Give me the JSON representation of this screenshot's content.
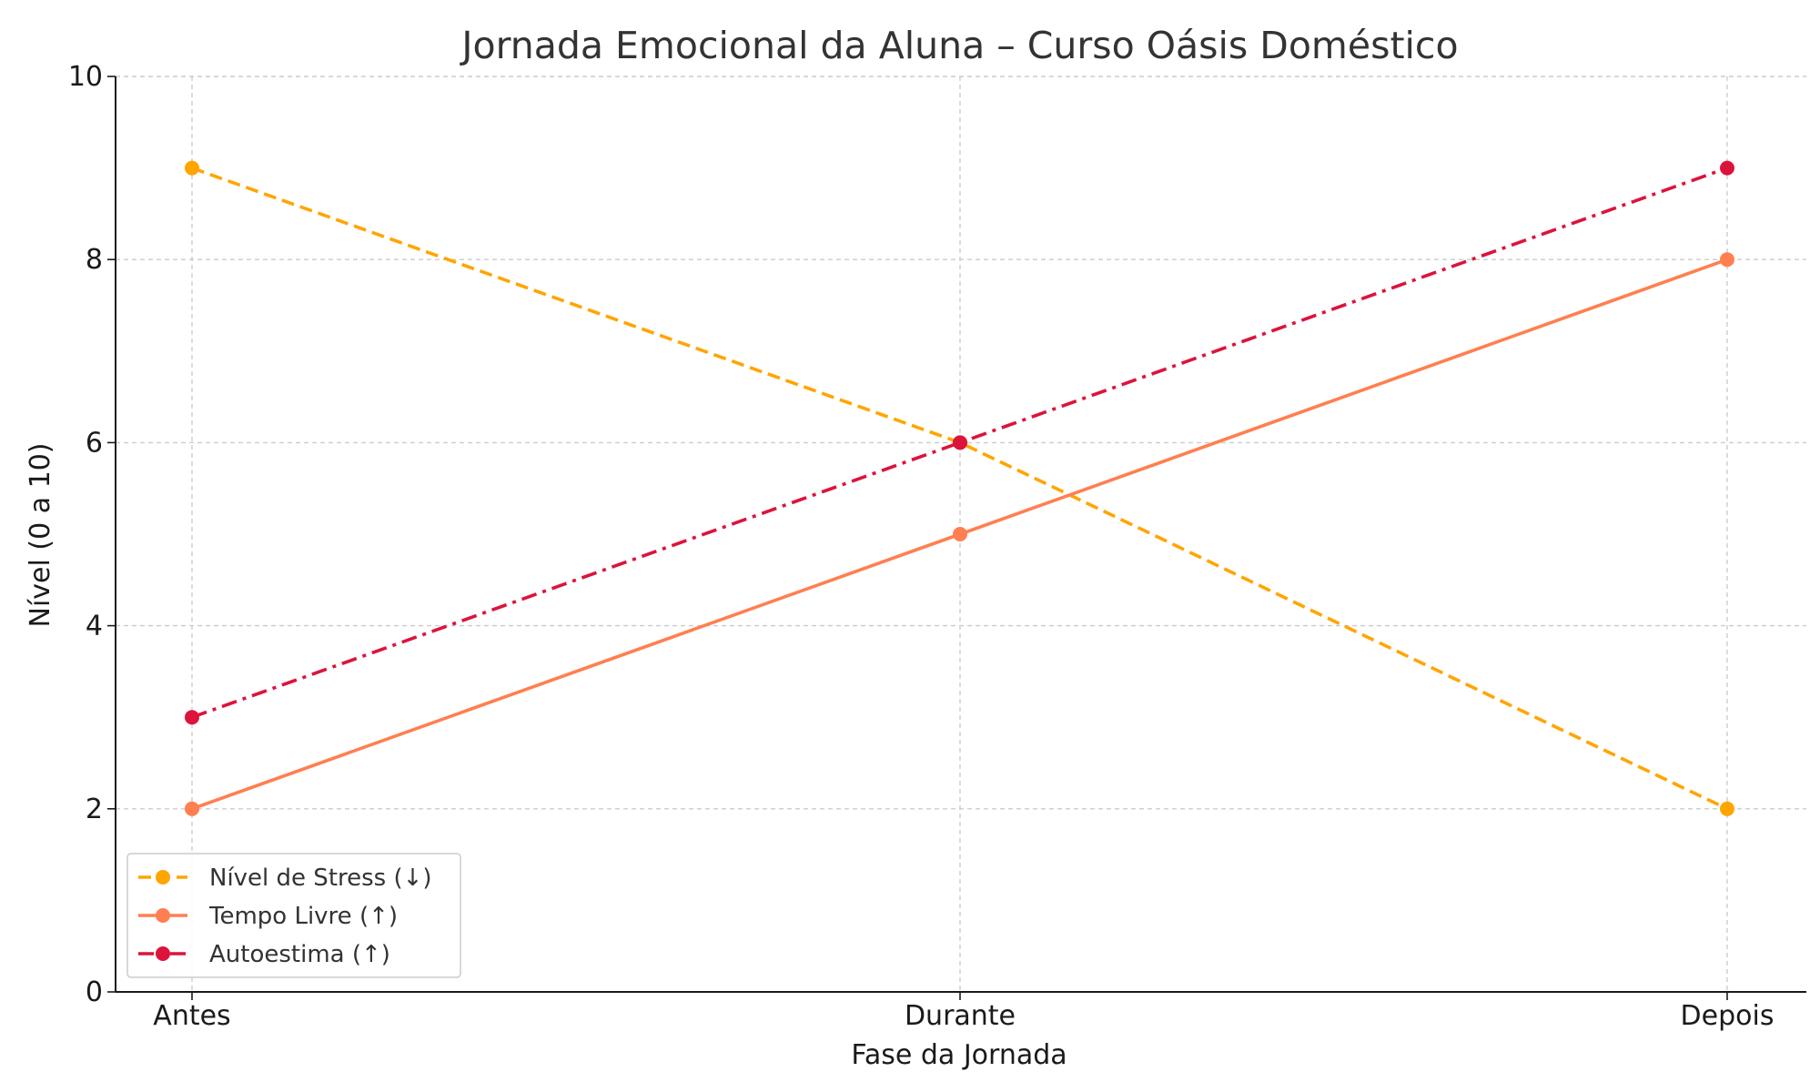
{
  "chart_data": {
    "type": "line",
    "title": "Jornada Emocional da Aluna – Curso Oásis Doméstico",
    "xlabel": "Fase da Jornada",
    "ylabel": "Nível (0 a 10)",
    "categories": [
      "Antes",
      "Durante",
      "Depois"
    ],
    "ylim": [
      0,
      10
    ],
    "yticks": [
      0,
      2,
      4,
      6,
      8,
      10
    ],
    "grid": true,
    "legend_position": "lower-left",
    "series": [
      {
        "name": "Nível de Stress (↓)",
        "values": [
          9,
          6,
          2
        ],
        "color": "#FFA500",
        "line_style": "dashed",
        "marker": "circle"
      },
      {
        "name": "Tempo Livre (↑)",
        "values": [
          2,
          5,
          8
        ],
        "color": "#FF7F50",
        "line_style": "solid",
        "marker": "circle"
      },
      {
        "name": "Autoestima (↑)",
        "values": [
          3,
          6,
          9
        ],
        "color": "#DC143C",
        "line_style": "dashdot",
        "marker": "circle"
      }
    ]
  }
}
